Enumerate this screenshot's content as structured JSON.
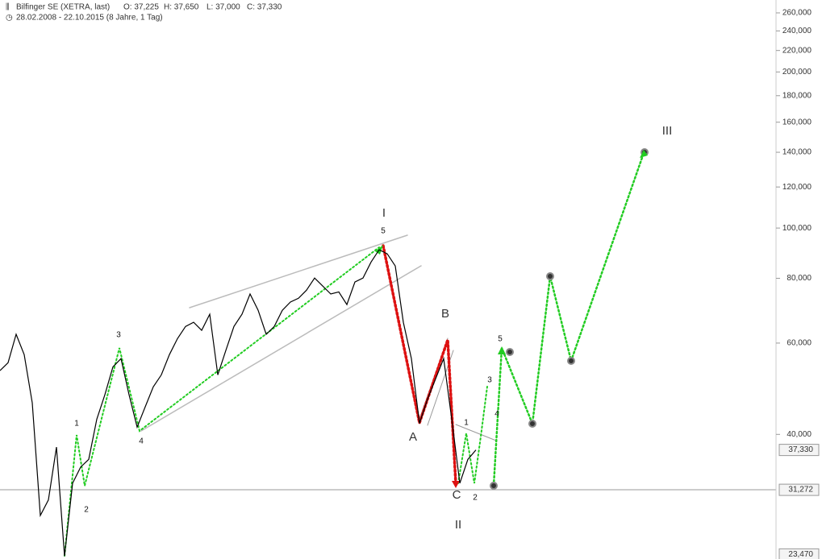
{
  "chart_data": {
    "type": "line",
    "log_scale": true,
    "color": "#000000",
    "title": "Bilfinger SE (XETRA, last)",
    "stats": [
      "O: 37,225",
      "H: 37,650",
      "L: 37,000",
      "C: 37,330"
    ],
    "subtitle": "28.02.2008 - 22.10.2015 (8 Jahre, 1 Tag)",
    "ylim": [
      23,
      275.3
    ],
    "yticks": [
      {
        "value": 260,
        "label": "260,000"
      },
      {
        "value": 240,
        "label": "240,000"
      },
      {
        "value": 220,
        "label": "220,000"
      },
      {
        "value": 200,
        "label": "200,000"
      },
      {
        "value": 180,
        "label": "180,000"
      },
      {
        "value": 160,
        "label": "160,000"
      },
      {
        "value": 140,
        "label": "140,000"
      },
      {
        "value": 120,
        "label": "120,000"
      },
      {
        "value": 100,
        "label": "100,000"
      },
      {
        "value": 80,
        "label": "80,000"
      },
      {
        "value": 60,
        "label": "60,000"
      },
      {
        "value": 40,
        "label": "40,000"
      }
    ],
    "price_markers": [
      {
        "value": 37.33,
        "label": "37,330"
      },
      {
        "value": 31.272,
        "label": "31,272"
      },
      {
        "value": 23.47,
        "label": "23,470"
      }
    ],
    "values": [
      53.1,
      55.0,
      62.4,
      57.0,
      46.0,
      27.9,
      29.9,
      37.8,
      23.3,
      32.2,
      34.6,
      35.8,
      42.8,
      47.7,
      54.0,
      56.0,
      47.7,
      41.3,
      45.2,
      49.4,
      52.1,
      57.0,
      61.2,
      64.6,
      65.8,
      63.5,
      68.2,
      52.1,
      58.1,
      64.6,
      68.2,
      74.6,
      69.4,
      62.4,
      64.6,
      69.4,
      72.0,
      73.2,
      75.9,
      80.1,
      77.3,
      74.6,
      75.3,
      71.2,
      78.7,
      80.1,
      86.0,
      90.8,
      89.2,
      84.5,
      65.8,
      56.0,
      42.0,
      46.8,
      51.2,
      56.0,
      42.8,
      32.2,
      35.8,
      37.33
    ],
    "annotations": [
      "I",
      "5",
      "3",
      "4",
      "1",
      "2",
      "B",
      "A",
      "C",
      "II",
      "1",
      "2",
      "3",
      "4",
      "5",
      "III"
    ]
  }
}
